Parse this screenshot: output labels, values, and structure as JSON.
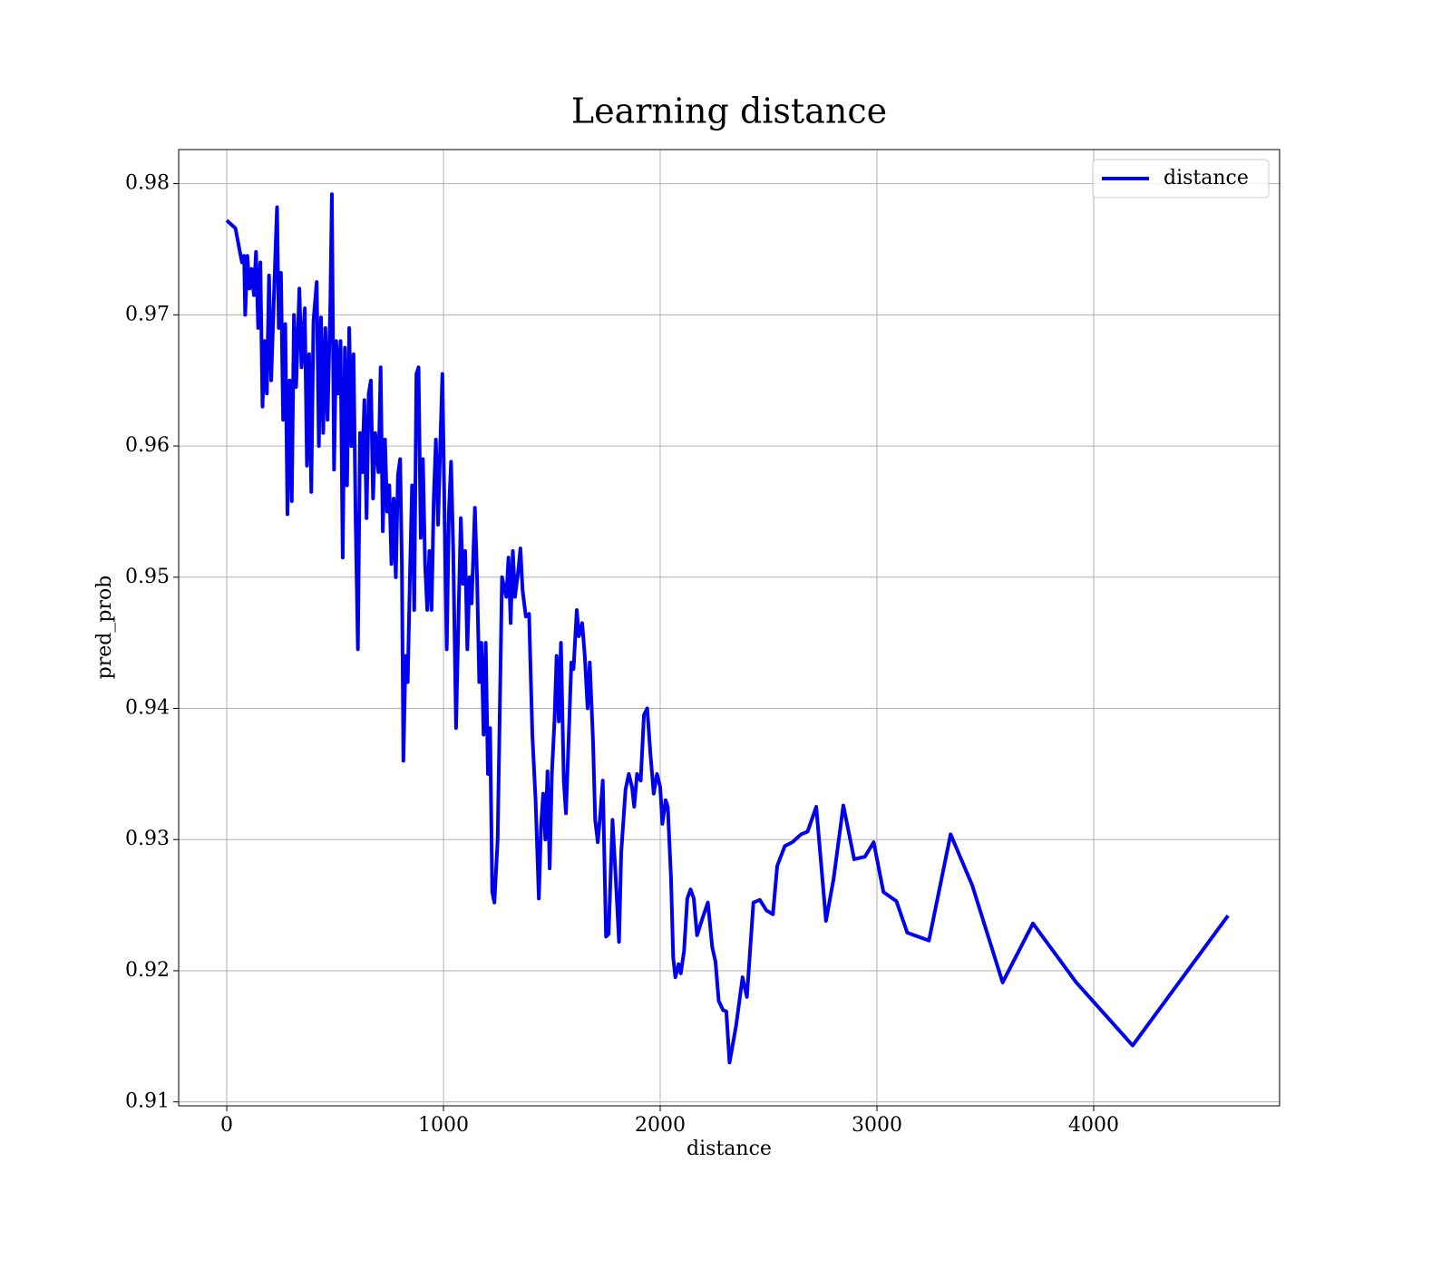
{
  "chart_data": {
    "type": "line",
    "title": "Learning distance",
    "xlabel": "distance",
    "ylabel": "pred_prob",
    "xlim": [
      -222,
      4858
    ],
    "xticks": [
      0,
      1000,
      2000,
      3000,
      4000
    ],
    "ylim": [
      0.9097,
      0.9826
    ],
    "yticks": [
      0.91,
      0.92,
      0.93,
      0.94,
      0.95,
      0.96,
      0.97,
      0.98
    ],
    "grid": true,
    "legend": "upper right",
    "x": [
      0,
      40,
      70,
      80,
      85,
      95,
      105,
      115,
      125,
      135,
      145,
      155,
      165,
      175,
      185,
      195,
      205,
      215,
      225,
      232,
      240,
      250,
      260,
      270,
      280,
      290,
      300,
      310,
      320,
      335,
      345,
      360,
      370,
      380,
      390,
      400,
      415,
      425,
      435,
      445,
      455,
      465,
      478,
      485,
      495,
      505,
      515,
      525,
      535,
      545,
      555,
      565,
      575,
      585,
      595,
      605,
      615,
      625,
      635,
      645,
      655,
      665,
      675,
      685,
      700,
      710,
      720,
      730,
      740,
      750,
      760,
      770,
      780,
      790,
      800,
      808,
      815,
      825,
      835,
      845,
      855,
      865,
      875,
      885,
      895,
      905,
      915,
      925,
      935,
      945,
      955,
      965,
      975,
      985,
      995,
      1005,
      1015,
      1025,
      1035,
      1045,
      1058,
      1070,
      1080,
      1090,
      1100,
      1110,
      1120,
      1130,
      1145,
      1155,
      1165,
      1175,
      1185,
      1195,
      1205,
      1215,
      1225,
      1235,
      1250,
      1270,
      1290,
      1300,
      1310,
      1320,
      1330,
      1345,
      1355,
      1365,
      1380,
      1395,
      1410,
      1425,
      1440,
      1450,
      1460,
      1470,
      1480,
      1490,
      1500,
      1512,
      1522,
      1532,
      1542,
      1555,
      1565,
      1575,
      1590,
      1600,
      1615,
      1625,
      1640,
      1652,
      1665,
      1675,
      1690,
      1700,
      1712,
      1725,
      1735,
      1750,
      1762,
      1780,
      1795,
      1810,
      1820,
      1840,
      1855,
      1870,
      1880,
      1893,
      1910,
      1925,
      1940,
      1955,
      1970,
      1985,
      2000,
      2010,
      2025,
      2035,
      2050,
      2060,
      2070,
      2085,
      2095,
      2110,
      2125,
      2140,
      2155,
      2170,
      2195,
      2220,
      2240,
      2255,
      2270,
      2290,
      2305,
      2320,
      2350,
      2380,
      2400,
      2430,
      2460,
      2490,
      2520,
      2540,
      2575,
      2610,
      2650,
      2680,
      2720,
      2765,
      2800,
      2845,
      2895,
      2945,
      2985,
      3030,
      3090,
      3140,
      3240,
      3340,
      3440,
      3580,
      3720,
      3920,
      4180,
      4620
    ],
    "series": [
      {
        "name": "distance",
        "color": "#0000ee",
        "values": [
          0.9772,
          0.9766,
          0.974,
          0.9745,
          0.97,
          0.9745,
          0.972,
          0.9735,
          0.9715,
          0.9748,
          0.969,
          0.974,
          0.963,
          0.968,
          0.964,
          0.973,
          0.965,
          0.97,
          0.975,
          0.9782,
          0.969,
          0.9732,
          0.962,
          0.9693,
          0.9548,
          0.965,
          0.9558,
          0.97,
          0.9645,
          0.972,
          0.966,
          0.9705,
          0.9585,
          0.967,
          0.9565,
          0.9695,
          0.9725,
          0.96,
          0.9698,
          0.961,
          0.969,
          0.962,
          0.971,
          0.9792,
          0.9582,
          0.968,
          0.964,
          0.968,
          0.9515,
          0.9675,
          0.957,
          0.969,
          0.96,
          0.967,
          0.954,
          0.9445,
          0.961,
          0.958,
          0.9635,
          0.9545,
          0.964,
          0.965,
          0.956,
          0.961,
          0.958,
          0.966,
          0.9535,
          0.9605,
          0.955,
          0.957,
          0.951,
          0.956,
          0.95,
          0.9578,
          0.959,
          0.951,
          0.936,
          0.944,
          0.942,
          0.95,
          0.957,
          0.9475,
          0.9655,
          0.966,
          0.953,
          0.959,
          0.951,
          0.9475,
          0.952,
          0.9475,
          0.956,
          0.9605,
          0.954,
          0.96,
          0.9655,
          0.9545,
          0.9445,
          0.955,
          0.9588,
          0.952,
          0.9385,
          0.9475,
          0.9545,
          0.9495,
          0.952,
          0.9445,
          0.95,
          0.948,
          0.9553,
          0.95,
          0.942,
          0.945,
          0.938,
          0.945,
          0.935,
          0.9385,
          0.926,
          0.9252,
          0.93,
          0.95,
          0.9485,
          0.9515,
          0.9465,
          0.952,
          0.9485,
          0.9505,
          0.9522,
          0.949,
          0.947,
          0.9472,
          0.938,
          0.933,
          0.9255,
          0.931,
          0.9335,
          0.93,
          0.9352,
          0.9278,
          0.935,
          0.939,
          0.944,
          0.939,
          0.945,
          0.9345,
          0.932,
          0.9365,
          0.9435,
          0.943,
          0.9475,
          0.9455,
          0.9465,
          0.944,
          0.94,
          0.9435,
          0.9375,
          0.9315,
          0.9298,
          0.9322,
          0.9345,
          0.9226,
          0.9228,
          0.9315,
          0.927,
          0.9222,
          0.929,
          0.9338,
          0.935,
          0.934,
          0.9325,
          0.935,
          0.9345,
          0.9395,
          0.94,
          0.9365,
          0.9335,
          0.935,
          0.934,
          0.9312,
          0.933,
          0.9325,
          0.927,
          0.921,
          0.9195,
          0.9205,
          0.9198,
          0.9215,
          0.9255,
          0.9262,
          0.9255,
          0.9227,
          0.924,
          0.9252,
          0.9218,
          0.9207,
          0.9177,
          0.917,
          0.9169,
          0.913,
          0.9158,
          0.9195,
          0.918,
          0.9252,
          0.9254,
          0.9246,
          0.9243,
          0.928,
          0.9295,
          0.9298,
          0.9304,
          0.9306,
          0.9325,
          0.9238,
          0.927,
          0.9326,
          0.9285,
          0.9287,
          0.9298,
          0.926,
          0.9253,
          0.9229,
          0.9223,
          0.9304,
          0.9265,
          0.9191,
          0.9236,
          0.9191,
          0.9143,
          0.9242
        ]
      }
    ]
  }
}
